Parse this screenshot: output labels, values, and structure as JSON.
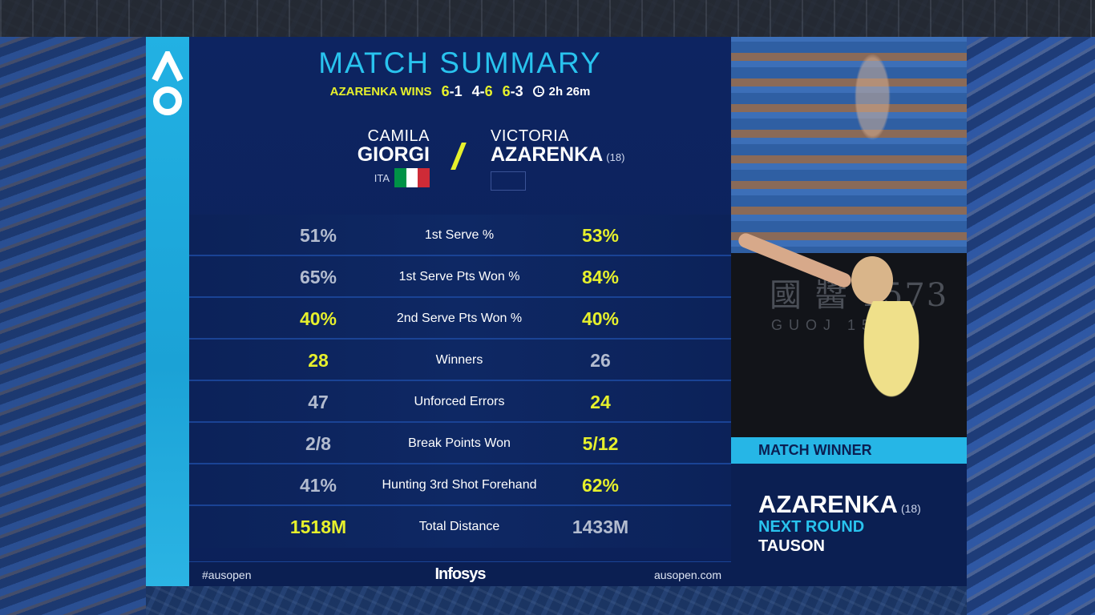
{
  "title": "MATCH SUMMARY",
  "result": {
    "winner_text": "AZARENKA WINS",
    "sets": [
      {
        "left": "6",
        "sep": "-",
        "right": "1",
        "winner_side": "left"
      },
      {
        "left": "4",
        "sep": "-",
        "right": "6",
        "winner_side": "right"
      },
      {
        "left": "6",
        "sep": "-",
        "right": "3",
        "winner_side": "left"
      }
    ],
    "duration": "2h 26m"
  },
  "players": {
    "left": {
      "first": "CAMILA",
      "last": "GIORGI",
      "country": "ITA",
      "flag_colors": [
        "#009246",
        "#ffffff",
        "#ce2b37"
      ]
    },
    "right": {
      "first": "VICTORIA",
      "last": "AZARENKA",
      "seed": "(18)"
    }
  },
  "stats": [
    {
      "label": "1st Serve %",
      "left": "51%",
      "right": "53%",
      "highlight": "right"
    },
    {
      "label": "1st Serve Pts Won %",
      "left": "65%",
      "right": "84%",
      "highlight": "right"
    },
    {
      "label": "2nd Serve Pts Won %",
      "left": "40%",
      "right": "40%",
      "highlight": "both"
    },
    {
      "label": "Winners",
      "left": "28",
      "right": "26",
      "highlight": "left"
    },
    {
      "label": "Unforced Errors",
      "left": "47",
      "right": "24",
      "highlight": "right"
    },
    {
      "label": "Break Points Won",
      "left": "2/8",
      "right": "5/12",
      "highlight": "right"
    },
    {
      "label": "Hunting 3rd Shot Forehand",
      "left": "41%",
      "right": "62%",
      "highlight": "right"
    },
    {
      "label": "Total Distance",
      "left": "1518M",
      "right": "1433M",
      "highlight": "left"
    }
  ],
  "footer": {
    "hashtag": "#ausopen",
    "sponsor": "Infosys",
    "site": "ausopen.com"
  },
  "photo_board": {
    "chars": "國 醬 1573",
    "latin": "GUOJ 1573"
  },
  "winner_box": {
    "label": "MATCH WINNER",
    "name": "AZARENKA",
    "seed": "(18)",
    "next_round_label": "NEXT ROUND",
    "opponent": "TAUSON"
  },
  "colors": {
    "accent_cyan": "#29c3ee",
    "highlight_yellow": "#e6f02c",
    "panel_navy": "#0c2159"
  }
}
